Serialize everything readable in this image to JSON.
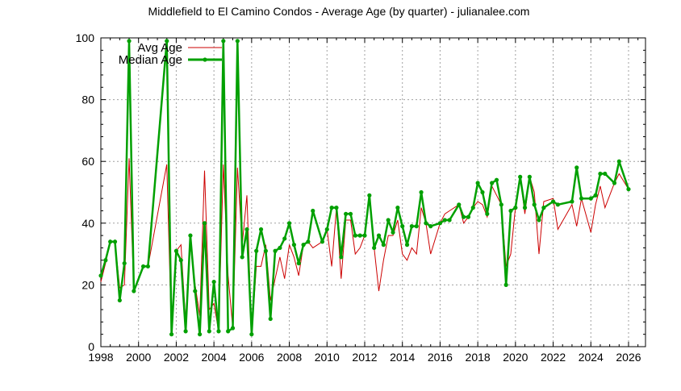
{
  "chart_data": {
    "type": "line",
    "title": "Middlefield to El Camino Condos - Average Age (by quarter) - julianalee.com",
    "xlabel": "",
    "ylabel": "",
    "xlim": [
      1998,
      2026.9
    ],
    "ylim": [
      0,
      100
    ],
    "grid": true,
    "legend_position": "top-left",
    "x_ticks": [
      "1998",
      "2000",
      "2002",
      "2004",
      "2006",
      "2008",
      "2010",
      "2012",
      "2014",
      "2016",
      "2018",
      "2020",
      "2022",
      "2024",
      "2026"
    ],
    "y_ticks": [
      "0",
      "20",
      "40",
      "60",
      "80",
      "100"
    ],
    "colors": {
      "avg": "#cc0000",
      "median": "#00a000",
      "grid": "#a0a0a0"
    },
    "series": [
      {
        "name": "Avg Age",
        "key": "avg"
      },
      {
        "name": "Median Age",
        "key": "median"
      }
    ],
    "points": [
      [
        1998.0,
        23,
        21
      ],
      [
        1998.25,
        28,
        27
      ],
      [
        1998.5,
        34,
        34
      ],
      [
        1998.75,
        34,
        34
      ],
      [
        1999.0,
        15,
        19
      ],
      [
        1999.25,
        27,
        20
      ],
      [
        1999.5,
        99,
        61
      ],
      [
        1999.75,
        18,
        18
      ],
      [
        2000.25,
        26,
        26
      ],
      [
        2000.5,
        26,
        26
      ],
      [
        2001.5,
        99,
        59
      ],
      [
        2001.75,
        4,
        4
      ],
      [
        2002.0,
        31,
        31
      ],
      [
        2002.25,
        28,
        33
      ],
      [
        2002.5,
        5,
        8
      ],
      [
        2002.75,
        36,
        33
      ],
      [
        2003.0,
        18,
        20
      ],
      [
        2003.25,
        4,
        10
      ],
      [
        2003.5,
        40,
        57
      ],
      [
        2003.75,
        5,
        12
      ],
      [
        2004.0,
        21,
        14
      ],
      [
        2004.25,
        5,
        5
      ],
      [
        2004.5,
        99,
        59
      ],
      [
        2004.75,
        5,
        23
      ],
      [
        2005.0,
        6,
        6
      ],
      [
        2005.25,
        99,
        58
      ],
      [
        2005.5,
        29,
        33
      ],
      [
        2005.75,
        38,
        49
      ],
      [
        2006.0,
        4,
        4
      ],
      [
        2006.25,
        31,
        26
      ],
      [
        2006.5,
        38,
        26
      ],
      [
        2006.75,
        31,
        33
      ],
      [
        2007.0,
        9,
        15
      ],
      [
        2007.25,
        31,
        22
      ],
      [
        2007.5,
        32,
        29
      ],
      [
        2007.75,
        35,
        22
      ],
      [
        2008.0,
        40,
        33
      ],
      [
        2008.25,
        33,
        29
      ],
      [
        2008.5,
        27,
        23
      ],
      [
        2008.75,
        33,
        33
      ],
      [
        2009.0,
        34,
        34
      ],
      [
        2009.25,
        44,
        32
      ],
      [
        2009.75,
        34,
        34
      ],
      [
        2010.0,
        38,
        38
      ],
      [
        2010.25,
        45,
        26
      ],
      [
        2010.5,
        45,
        45
      ],
      [
        2010.75,
        29,
        22
      ],
      [
        2011.0,
        43,
        41
      ],
      [
        2011.25,
        43,
        41
      ],
      [
        2011.5,
        36,
        30
      ],
      [
        2011.75,
        36,
        32
      ],
      [
        2012.0,
        36,
        36
      ],
      [
        2012.25,
        49,
        49
      ],
      [
        2012.5,
        32,
        32
      ],
      [
        2012.75,
        36,
        18
      ],
      [
        2013.0,
        33,
        28
      ],
      [
        2013.25,
        41,
        36
      ],
      [
        2013.5,
        37,
        36
      ],
      [
        2013.75,
        45,
        41
      ],
      [
        2014.0,
        39,
        30
      ],
      [
        2014.25,
        33,
        28
      ],
      [
        2014.5,
        39,
        32
      ],
      [
        2014.75,
        39,
        30
      ],
      [
        2015.0,
        50,
        45
      ],
      [
        2015.25,
        40,
        40
      ],
      [
        2015.5,
        39,
        30
      ],
      [
        2016.0,
        40,
        40
      ],
      [
        2016.25,
        41,
        43
      ],
      [
        2016.5,
        41,
        44
      ],
      [
        2017.0,
        46,
        46
      ],
      [
        2017.25,
        42,
        40
      ],
      [
        2017.5,
        42,
        42
      ],
      [
        2017.75,
        45,
        45
      ],
      [
        2018.0,
        53,
        47
      ],
      [
        2018.25,
        50,
        46
      ],
      [
        2018.5,
        43,
        42
      ],
      [
        2018.75,
        53,
        52
      ],
      [
        2019.0,
        54,
        49
      ],
      [
        2019.25,
        46,
        46
      ],
      [
        2019.5,
        20,
        26
      ],
      [
        2019.75,
        44,
        30
      ],
      [
        2020.0,
        45,
        45
      ],
      [
        2020.25,
        55,
        55
      ],
      [
        2020.5,
        45,
        43
      ],
      [
        2020.75,
        55,
        55
      ],
      [
        2021.0,
        46,
        50
      ],
      [
        2021.25,
        41,
        30
      ],
      [
        2021.5,
        45,
        47
      ],
      [
        2022.0,
        47,
        48
      ],
      [
        2022.25,
        46,
        38
      ],
      [
        2023.0,
        47,
        46
      ],
      [
        2023.25,
        58,
        39
      ],
      [
        2023.5,
        48,
        48
      ],
      [
        2024.0,
        48,
        37
      ],
      [
        2024.25,
        49,
        46
      ],
      [
        2024.5,
        56,
        52
      ],
      [
        2024.75,
        56,
        45
      ],
      [
        2025.25,
        53,
        53
      ],
      [
        2025.5,
        60,
        56
      ],
      [
        2026.0,
        51,
        51
      ]
    ],
    "points_format": [
      "year",
      "median",
      "avg"
    ]
  }
}
